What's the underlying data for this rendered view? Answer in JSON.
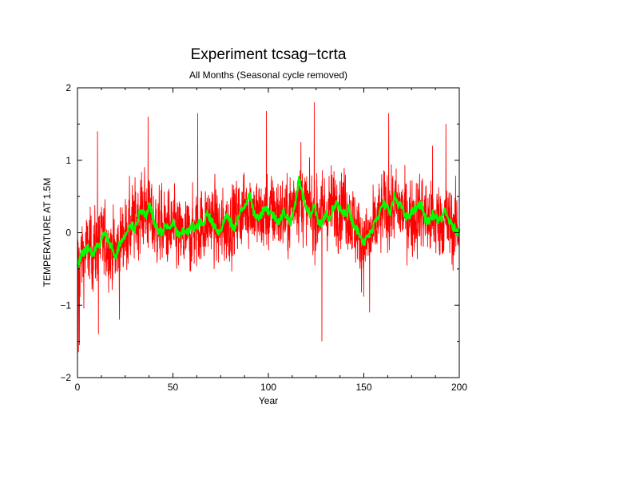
{
  "chart_data": {
    "type": "line",
    "title": "Experiment tcsag−tcrta",
    "subtitle": "All Months (Seasonal cycle removed)",
    "xlabel": "Year",
    "ylabel": "TEMPERATURE AT 1.5M",
    "xlim": [
      0,
      200
    ],
    "ylim": [
      -2,
      2
    ],
    "xticks": [
      0,
      50,
      100,
      150,
      200
    ],
    "yticks": [
      -2,
      -1,
      0,
      1,
      2
    ],
    "xtick_labels": [
      "0",
      "50",
      "100",
      "150",
      "200"
    ],
    "ytick_labels": [
      "−2",
      "−1",
      "0",
      "1",
      "2"
    ],
    "grid": false,
    "legend": "none",
    "series": [
      {
        "color": "#ff0000",
        "style": "monthly",
        "x_step": 0.0833,
        "mean_anomaly": [
          [
            0,
            -0.45
          ],
          [
            5,
            -0.25
          ],
          [
            10,
            -0.2
          ],
          [
            15,
            -0.1
          ],
          [
            20,
            -0.3
          ],
          [
            25,
            0.0
          ],
          [
            30,
            0.15
          ],
          [
            35,
            0.35
          ],
          [
            40,
            0.1
          ],
          [
            45,
            0.05
          ],
          [
            50,
            0.05
          ],
          [
            55,
            -0.1
          ],
          [
            60,
            0.0
          ],
          [
            65,
            0.1
          ],
          [
            70,
            0.2
          ],
          [
            75,
            0.0
          ],
          [
            80,
            0.15
          ],
          [
            85,
            0.25
          ],
          [
            90,
            0.4
          ],
          [
            95,
            0.2
          ],
          [
            100,
            0.25
          ],
          [
            105,
            0.3
          ],
          [
            110,
            0.2
          ],
          [
            115,
            0.55
          ],
          [
            120,
            0.35
          ],
          [
            125,
            0.25
          ],
          [
            130,
            0.3
          ],
          [
            135,
            0.35
          ],
          [
            140,
            0.4
          ],
          [
            145,
            0.1
          ],
          [
            150,
            -0.15
          ],
          [
            155,
            0.0
          ],
          [
            160,
            0.3
          ],
          [
            165,
            0.35
          ],
          [
            170,
            0.3
          ],
          [
            175,
            0.2
          ],
          [
            180,
            0.3
          ],
          [
            185,
            0.15
          ],
          [
            190,
            0.2
          ],
          [
            195,
            0.1
          ],
          [
            200,
            0.05
          ]
        ],
        "spread": 0.35,
        "spikes": [
          [
            0.5,
            -1.65
          ],
          [
            1,
            -1.55
          ],
          [
            10.5,
            1.4
          ],
          [
            11,
            -1.4
          ],
          [
            22,
            -1.2
          ],
          [
            37,
            1.6
          ],
          [
            63,
            1.65
          ],
          [
            99,
            1.68
          ],
          [
            117,
            1.25
          ],
          [
            124,
            1.8
          ],
          [
            128,
            -1.5
          ],
          [
            153,
            -1.1
          ],
          [
            163,
            1.65
          ],
          [
            186,
            1.2
          ],
          [
            193,
            1.5
          ]
        ]
      },
      {
        "color": "#00ff00",
        "style": "smoothed",
        "points": [
          [
            0,
            -0.45
          ],
          [
            2,
            -0.3
          ],
          [
            4,
            -0.25
          ],
          [
            6,
            -0.2
          ],
          [
            8,
            -0.3
          ],
          [
            10,
            -0.2
          ],
          [
            12,
            -0.15
          ],
          [
            14,
            0.0
          ],
          [
            16,
            -0.1
          ],
          [
            18,
            -0.2
          ],
          [
            20,
            -0.35
          ],
          [
            22,
            -0.15
          ],
          [
            24,
            -0.1
          ],
          [
            26,
            0.0
          ],
          [
            28,
            0.1
          ],
          [
            30,
            0.05
          ],
          [
            32,
            0.25
          ],
          [
            34,
            0.3
          ],
          [
            36,
            0.2
          ],
          [
            38,
            0.4
          ],
          [
            40,
            0.15
          ],
          [
            42,
            0.05
          ],
          [
            44,
            0.0
          ],
          [
            46,
            0.1
          ],
          [
            48,
            0.05
          ],
          [
            50,
            0.15
          ],
          [
            52,
            0.0
          ],
          [
            54,
            -0.05
          ],
          [
            56,
            0.05
          ],
          [
            58,
            0.0
          ],
          [
            60,
            0.1
          ],
          [
            62,
            0.05
          ],
          [
            64,
            0.15
          ],
          [
            66,
            0.1
          ],
          [
            68,
            0.3
          ],
          [
            70,
            0.15
          ],
          [
            72,
            0.1
          ],
          [
            74,
            0.0
          ],
          [
            76,
            0.1
          ],
          [
            78,
            0.25
          ],
          [
            80,
            0.15
          ],
          [
            82,
            0.05
          ],
          [
            84,
            0.2
          ],
          [
            86,
            0.3
          ],
          [
            88,
            0.4
          ],
          [
            90,
            0.55
          ],
          [
            92,
            0.3
          ],
          [
            94,
            0.2
          ],
          [
            96,
            0.25
          ],
          [
            98,
            0.35
          ],
          [
            100,
            0.3
          ],
          [
            102,
            0.25
          ],
          [
            104,
            0.2
          ],
          [
            106,
            0.15
          ],
          [
            108,
            0.3
          ],
          [
            110,
            0.2
          ],
          [
            112,
            0.15
          ],
          [
            114,
            0.4
          ],
          [
            116,
            0.75
          ],
          [
            118,
            0.5
          ],
          [
            120,
            0.35
          ],
          [
            122,
            0.25
          ],
          [
            124,
            0.4
          ],
          [
            126,
            0.15
          ],
          [
            128,
            0.1
          ],
          [
            130,
            0.25
          ],
          [
            132,
            0.2
          ],
          [
            134,
            0.35
          ],
          [
            136,
            0.4
          ],
          [
            138,
            0.3
          ],
          [
            140,
            0.25
          ],
          [
            142,
            0.35
          ],
          [
            144,
            0.15
          ],
          [
            146,
            0.05
          ],
          [
            148,
            0.0
          ],
          [
            150,
            -0.15
          ],
          [
            152,
            -0.05
          ],
          [
            154,
            0.0
          ],
          [
            156,
            0.2
          ],
          [
            158,
            0.25
          ],
          [
            160,
            0.4
          ],
          [
            162,
            0.35
          ],
          [
            164,
            0.3
          ],
          [
            166,
            0.5
          ],
          [
            168,
            0.4
          ],
          [
            170,
            0.35
          ],
          [
            172,
            0.2
          ],
          [
            174,
            0.25
          ],
          [
            176,
            0.3
          ],
          [
            178,
            0.35
          ],
          [
            180,
            0.4
          ],
          [
            182,
            0.2
          ],
          [
            184,
            0.15
          ],
          [
            186,
            0.25
          ],
          [
            188,
            0.2
          ],
          [
            190,
            0.15
          ],
          [
            192,
            0.3
          ],
          [
            194,
            0.2
          ],
          [
            196,
            0.1
          ],
          [
            198,
            0.05
          ],
          [
            200,
            0.0
          ]
        ]
      }
    ]
  }
}
